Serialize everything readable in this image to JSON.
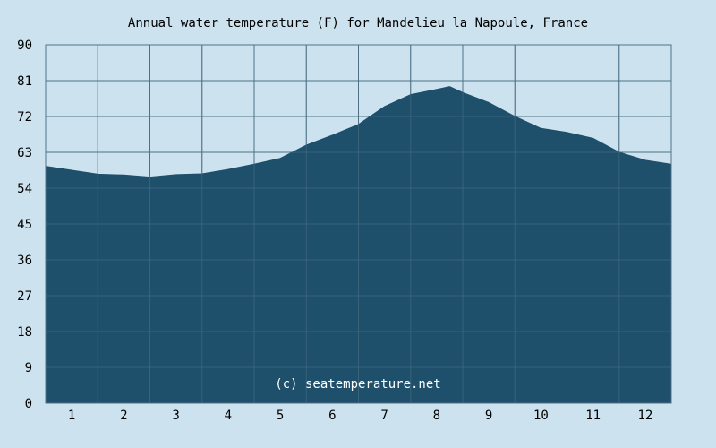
{
  "chart_data": {
    "type": "area",
    "title": "Annual water temperature (F) for Mandelieu la Napoule, France",
    "x_tick_labels": [
      "1",
      "2",
      "3",
      "4",
      "5",
      "6",
      "7",
      "8",
      "9",
      "10",
      "11",
      "12"
    ],
    "y_tick_labels": [
      "0",
      "9",
      "18",
      "27",
      "36",
      "45",
      "54",
      "63",
      "72",
      "81",
      "90"
    ],
    "ylim": [
      0,
      90
    ],
    "xlim": [
      0.5,
      12.5
    ],
    "grid": true,
    "series": [
      {
        "x": [
          0.5,
          1.0,
          1.5,
          2.0,
          2.5,
          3.0,
          3.5,
          4.0,
          4.5,
          5.0,
          5.5,
          6.0,
          6.5,
          7.0,
          7.5,
          8.0,
          8.25,
          8.5,
          9.0,
          9.5,
          10.0,
          10.5,
          11.0,
          11.5,
          12.0,
          12.5
        ],
        "values": [
          59.5,
          58.5,
          57.5,
          57.3,
          56.8,
          57.4,
          57.6,
          58.7,
          60.0,
          61.5,
          64.8,
          67.3,
          70.0,
          74.5,
          77.5,
          78.8,
          79.5,
          78.0,
          75.5,
          72.0,
          69.0,
          68.0,
          66.5,
          63.0,
          61.0,
          60.0
        ]
      }
    ],
    "watermark": "(c) seatemperature.net",
    "colors": {
      "background": "#cce3ef",
      "area_fill": "#1e4f6b",
      "grid": "#4f7187"
    }
  }
}
